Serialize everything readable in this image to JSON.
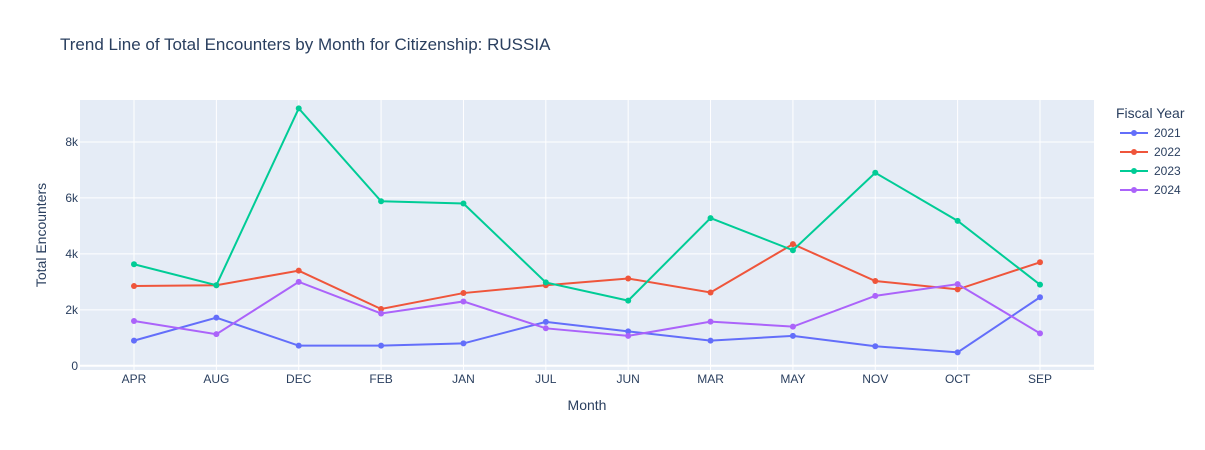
{
  "chart_data": {
    "type": "line",
    "title": "Trend Line of Total Encounters by Month for Citizenship: RUSSIA",
    "xlabel": "Month",
    "ylabel": "Total Encounters",
    "categories": [
      "APR",
      "AUG",
      "DEC",
      "FEB",
      "JAN",
      "JUL",
      "JUN",
      "MAR",
      "MAY",
      "NOV",
      "OCT",
      "SEP"
    ],
    "ylim": [
      -150,
      9500
    ],
    "yticks": [
      0,
      2000,
      4000,
      6000,
      8000
    ],
    "ytick_labels": [
      "0",
      "2k",
      "4k",
      "6k",
      "8k"
    ],
    "grid": true,
    "legend": {
      "title": "Fiscal Year",
      "placement": "top-right-outside"
    },
    "series": [
      {
        "name": "2021",
        "color": "#636efa",
        "values": [
          900,
          1720,
          720,
          720,
          800,
          1570,
          1230,
          900,
          1070,
          700,
          480,
          2450
        ]
      },
      {
        "name": "2022",
        "color": "#ef553b",
        "values": [
          2850,
          2880,
          3400,
          2030,
          2600,
          2880,
          3120,
          2620,
          4350,
          3030,
          2730,
          3700
        ]
      },
      {
        "name": "2023",
        "color": "#00cc96",
        "values": [
          3630,
          2880,
          9200,
          5880,
          5800,
          2980,
          2330,
          5280,
          4130,
          6900,
          5180,
          2900
        ]
      },
      {
        "name": "2024",
        "color": "#ab63fa",
        "values": [
          1600,
          1130,
          3000,
          1870,
          2300,
          1340,
          1070,
          1580,
          1400,
          2500,
          2920,
          1160
        ]
      }
    ]
  }
}
